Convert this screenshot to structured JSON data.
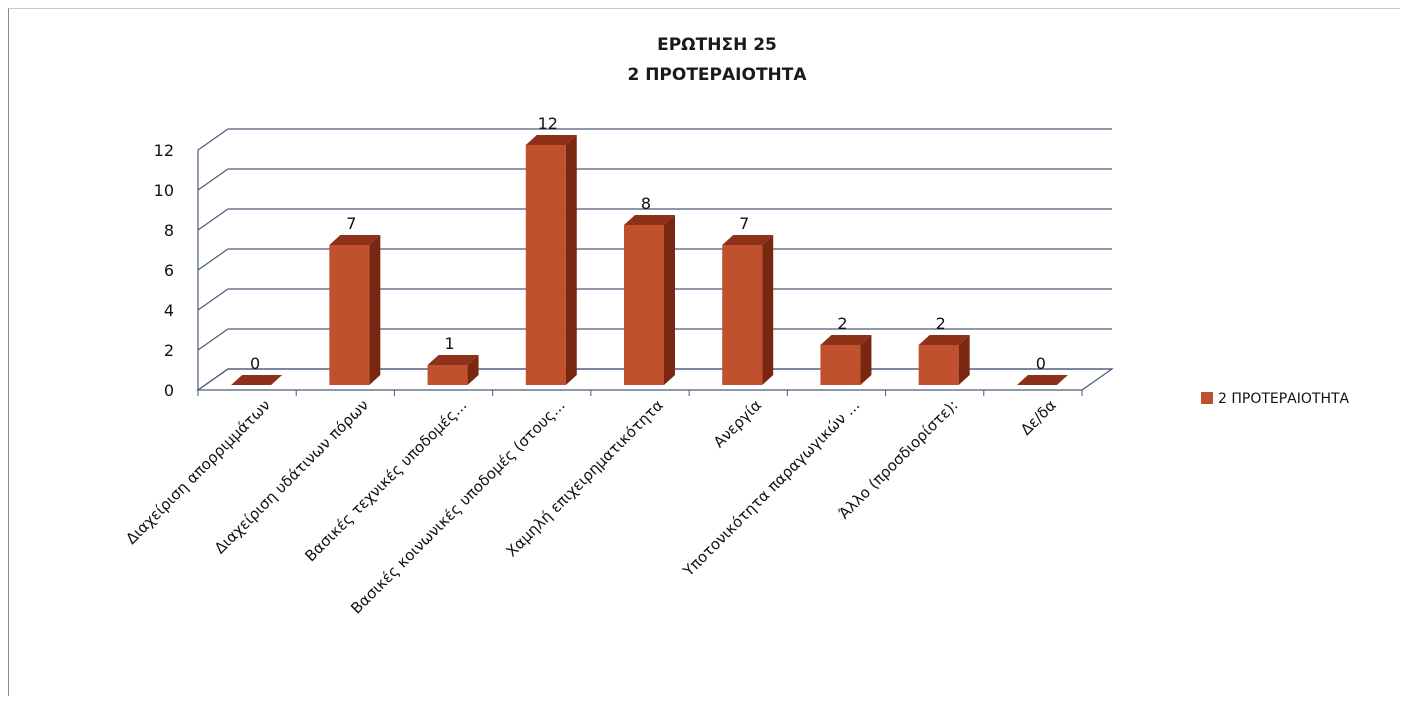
{
  "chart_data": {
    "type": "bar",
    "title": [
      "ΕΡΩΤΗΣΗ 25",
      "2 ΠΡΟΤΕΡΑΙΟΤΗΤΑ"
    ],
    "categories": [
      "Διαχείριση απορριμμάτων",
      "Διαχείριση υδάτινων πόρων",
      "Βασικές τεχνικές υποδομές...",
      "Βασικές κοινωνικές υποδομές (στους...",
      "Χαμηλή επιχειρηματικότητα",
      "Ανεργία",
      "Υποτονικότητα παραγωγικών ...",
      "Άλλο (προσδιορίστε):",
      "Δε/δα"
    ],
    "series": [
      {
        "name": "2 ΠΡΟΤΕΡΑΙΟΤΗΤΑ",
        "values": [
          0,
          7,
          1,
          12,
          8,
          7,
          2,
          2,
          0
        ],
        "color": "#C0502E"
      }
    ],
    "yticks": [
      "0",
      "2",
      "4",
      "6",
      "8",
      "10",
      "12"
    ],
    "ylim": [
      0,
      12
    ],
    "grid": true,
    "legend": "right",
    "style": "3d-column"
  }
}
